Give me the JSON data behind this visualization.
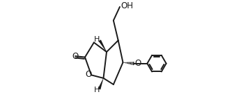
{
  "background_color": "#ffffff",
  "line_color": "#1a1a1a",
  "bond_width": 1.4,
  "figure_size": [
    3.56,
    1.56
  ],
  "dpi": 100,
  "xlim": [
    0.0,
    1.0
  ],
  "ylim": [
    0.0,
    1.0
  ]
}
